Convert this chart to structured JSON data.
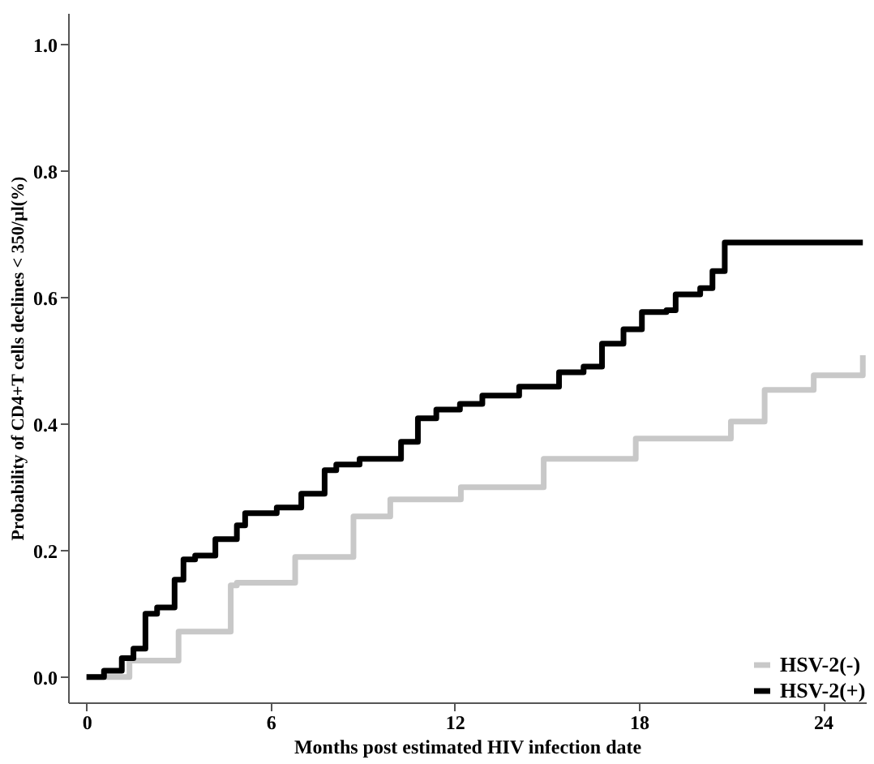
{
  "chart_data": {
    "type": "step",
    "xlabel": "Months post estimated HIV infection date",
    "ylabel": "Probability of CD4+T cells declines < 350/µl(%)",
    "xlim": [
      -0.6,
      25.4
    ],
    "ylim": [
      -0.04,
      1.05
    ],
    "xticks": [
      0,
      6,
      12,
      18,
      24
    ],
    "yticks": [
      {
        "value": 0,
        "label": "0.0"
      },
      {
        "value": 0.2,
        "label": "0.2"
      },
      {
        "value": 0.4,
        "label": "0.4"
      },
      {
        "value": 0.6,
        "label": "0.6"
      },
      {
        "value": 0.8,
        "label": "0.8"
      },
      {
        "value": 1,
        "label": "1.0"
      }
    ],
    "grid": false,
    "legend": "bottom right",
    "line_style": "solid",
    "marker": "none",
    "series": [
      {
        "name": "HSV-2(-)",
        "color": "#c8c8c8",
        "x": [
          0,
          1.4,
          3.0,
          4.7,
          4.9,
          6.8,
          8.7,
          9.9,
          12.2,
          14.9,
          17.9,
          21.0,
          22.1,
          23.7,
          25.3
        ],
        "values": [
          0,
          0.026,
          0.072,
          0.145,
          0.149,
          0.19,
          0.254,
          0.281,
          0.3,
          0.345,
          0.377,
          0.404,
          0.454,
          0.477,
          0.509
        ]
      },
      {
        "name": "HSV-2(+)",
        "color": "#000000",
        "x": [
          0,
          0.57,
          1.15,
          1.53,
          1.92,
          2.3,
          2.87,
          3.16,
          3.54,
          4.2,
          4.9,
          5.17,
          6.2,
          7.0,
          7.76,
          8.14,
          8.9,
          10.25,
          10.8,
          11.4,
          12.17,
          12.9,
          14.1,
          15.4,
          16.2,
          16.8,
          17.5,
          18.1,
          18.9,
          19.2,
          20.0,
          20.4,
          20.8,
          25.3
        ],
        "values": [
          0,
          0.01,
          0.03,
          0.045,
          0.1,
          0.11,
          0.154,
          0.186,
          0.192,
          0.218,
          0.24,
          0.259,
          0.268,
          0.29,
          0.327,
          0.336,
          0.345,
          0.372,
          0.409,
          0.423,
          0.432,
          0.445,
          0.459,
          0.482,
          0.491,
          0.527,
          0.55,
          0.577,
          0.58,
          0.605,
          0.615,
          0.642,
          0.687,
          0.687
        ]
      }
    ]
  }
}
